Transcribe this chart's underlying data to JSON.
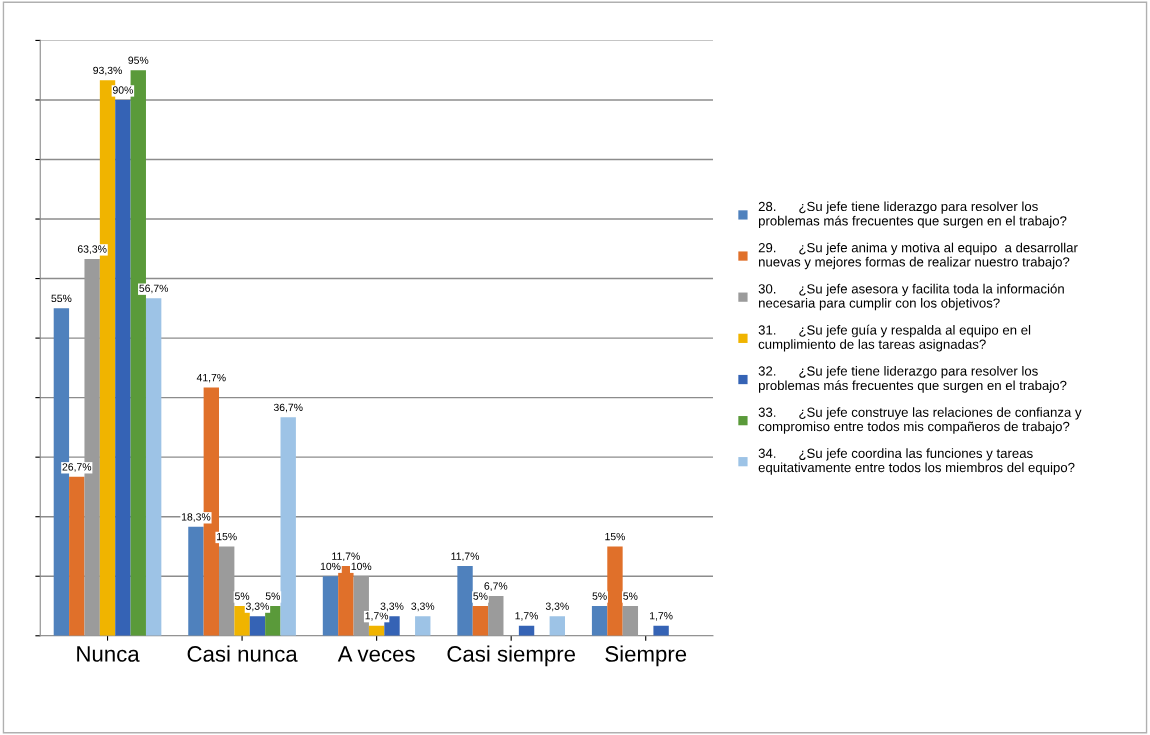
{
  "chart_data": {
    "type": "bar",
    "categories": [
      "Nunca",
      "Casi nunca",
      "A veces",
      "Casi siempre",
      "Siempre"
    ],
    "series": [
      {
        "name": "28.      ¿Su jefe tiene liderazgo para resolver los\nproblemas más frecuentes que surgen en el trabajo?",
        "color": "#4f81bd",
        "values": [
          55,
          18.3,
          10,
          11.7,
          5
        ],
        "value_labels": [
          "55%",
          "18,3%",
          "10%",
          "11,7%",
          "5%"
        ]
      },
      {
        "name": "29.      ¿Su jefe anima y motiva al equipo  a desarrollar\nnuevas y mejores formas de realizar nuestro trabajo?",
        "color": "#e0702a",
        "values": [
          26.7,
          41.7,
          11.7,
          5,
          15
        ],
        "value_labels": [
          "26,7%",
          "41,7%",
          "11,7%",
          "5%",
          "15%"
        ]
      },
      {
        "name": "30.      ¿Su jefe asesora y facilita toda la información\nnecesaria para cumplir con los objetivos?",
        "color": "#9b9b9b",
        "values": [
          63.3,
          15,
          10,
          6.7,
          5
        ],
        "value_labels": [
          "63,3%",
          "15%",
          "10%",
          "6,7%",
          "5%"
        ]
      },
      {
        "name": "31.      ¿Su jefe guía y respalda al equipo en el\ncumplimiento de las tareas asignadas?",
        "color": "#f0b400",
        "values": [
          93.3,
          5,
          1.7,
          0,
          0
        ],
        "value_labels": [
          "93,3%",
          "5%",
          "1,7%",
          null,
          null
        ]
      },
      {
        "name": "32.      ¿Su jefe tiene liderazgo para resolver los\nproblemas más frecuentes que surgen en el trabajo?",
        "color": "#3563b5",
        "values": [
          90,
          3.3,
          3.3,
          1.7,
          1.7
        ],
        "value_labels": [
          "90%",
          "3,3%",
          "3,3%",
          "1,7%",
          "1,7%"
        ]
      },
      {
        "name": "33.      ¿Su jefe construye las relaciones de confianza y\ncompromiso entre todos mis compañeros de trabajo?",
        "color": "#5a9a3a",
        "values": [
          95,
          5,
          0,
          0,
          0
        ],
        "value_labels": [
          "95%",
          "5%",
          null,
          null,
          null
        ]
      },
      {
        "name": "34.      ¿Su jefe coordina las funciones y tareas\nequitativamente entre todos los miembros del equipo?",
        "color": "#9dc3e6",
        "values": [
          56.7,
          36.7,
          3.3,
          3.3,
          0
        ],
        "value_labels": [
          "56,7%",
          "36,7%",
          "3,3%",
          "3,3%",
          null
        ]
      }
    ],
    "ylim": [
      0,
      100
    ],
    "yticks": [
      0,
      10,
      20,
      30,
      40,
      50,
      60,
      70,
      80,
      90,
      100
    ],
    "tick_labels": "x",
    "grid": "y",
    "legend": "right"
  }
}
